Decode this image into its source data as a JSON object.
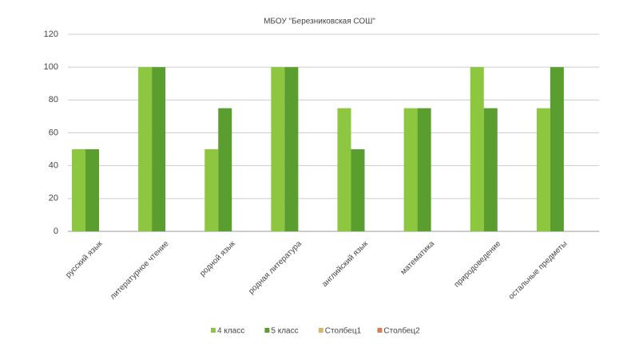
{
  "chart_data": {
    "type": "bar",
    "title": "МБОУ \"Березниковская СОШ\"",
    "categories": [
      "русский язык",
      "литературное чтение",
      "родной язык",
      "родная литература",
      "английский язык",
      "математика",
      "природоведение",
      "остальные предметы"
    ],
    "series": [
      {
        "name": "4 класс",
        "color": "#8dc63f",
        "values": [
          50,
          100,
          50,
          100,
          75,
          75,
          100,
          75
        ]
      },
      {
        "name": "5 класс",
        "color": "#5a9e2f",
        "values": [
          50,
          100,
          75,
          100,
          50,
          75,
          75,
          100
        ]
      },
      {
        "name": "Столбец1",
        "color": "#d9b56a",
        "values": [
          null,
          null,
          null,
          null,
          null,
          null,
          null,
          null
        ]
      },
      {
        "name": "Столбец2",
        "color": "#e07b4f",
        "values": [
          null,
          null,
          null,
          null,
          null,
          null,
          null,
          null
        ]
      }
    ],
    "ylim": [
      0,
      120
    ],
    "yticks": [
      0,
      20,
      40,
      60,
      80,
      100,
      120
    ],
    "grid": true,
    "legend": "bottom"
  }
}
